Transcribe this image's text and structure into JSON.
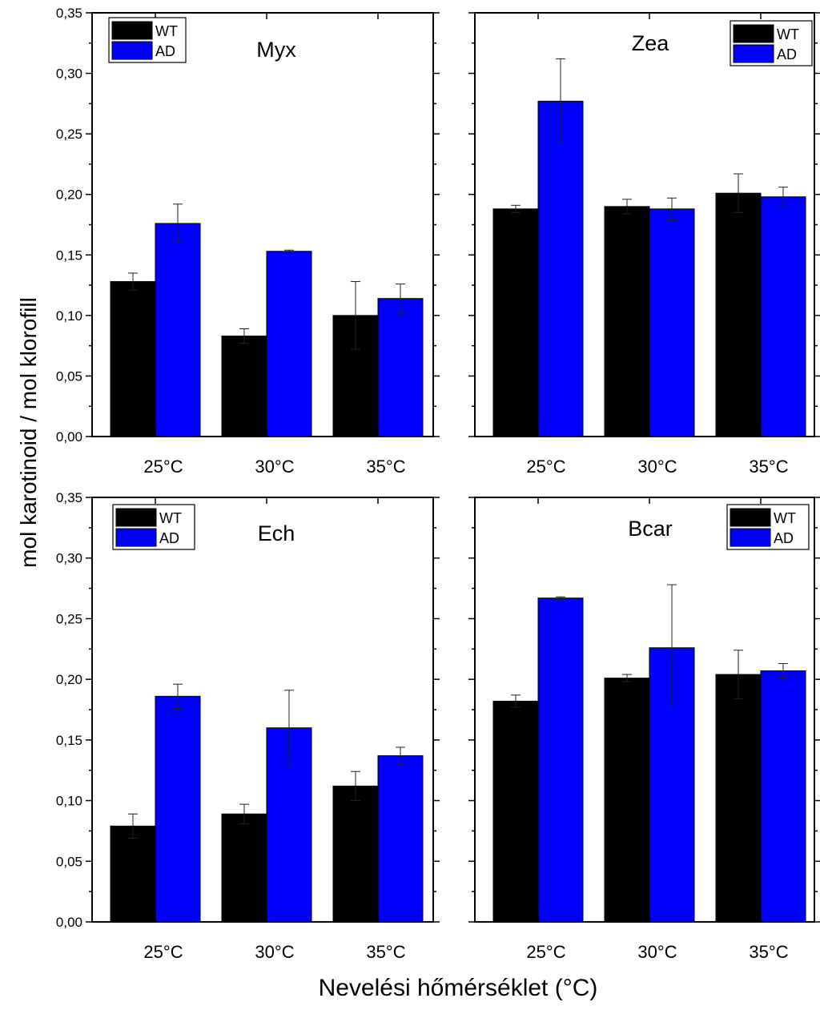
{
  "figure": {
    "ylabel": "mol karotinoid / mol klorofill",
    "xlabel": "Nevelési hőmérséklet (°C)"
  },
  "chart_data": [
    {
      "type": "bar",
      "title": "Myx",
      "categories": [
        "25°C",
        "30°C",
        "35°C"
      ],
      "series": [
        {
          "name": "WT",
          "color": "#000000",
          "values": [
            0.128,
            0.083,
            0.1
          ],
          "errors": [
            0.007,
            0.006,
            0.028
          ]
        },
        {
          "name": "AD",
          "color": "#0000ff",
          "values": [
            0.176,
            0.153,
            0.114
          ],
          "errors": [
            0.016,
            0.001,
            0.012
          ]
        }
      ],
      "ylim": [
        0,
        0.35
      ],
      "yticks": [
        "0,00",
        "0,05",
        "0,10",
        "0,15",
        "0,20",
        "0,25",
        "0,30",
        "0,35"
      ],
      "legend_position": "top-left",
      "grid": false
    },
    {
      "type": "bar",
      "title": "Zea",
      "categories": [
        "25°C",
        "30°C",
        "35°C"
      ],
      "series": [
        {
          "name": "WT",
          "color": "#000000",
          "values": [
            0.188,
            0.19,
            0.201
          ],
          "errors": [
            0.003,
            0.006,
            0.016
          ]
        },
        {
          "name": "AD",
          "color": "#0000ff",
          "values": [
            0.277,
            0.188,
            0.198
          ],
          "errors": [
            0.035,
            0.009,
            0.008
          ]
        }
      ],
      "ylim": [
        0,
        0.35
      ],
      "legend_position": "top-right",
      "grid": false
    },
    {
      "type": "bar",
      "title": "Ech",
      "categories": [
        "25°C",
        "30°C",
        "35°C"
      ],
      "series": [
        {
          "name": "WT",
          "color": "#000000",
          "values": [
            0.079,
            0.089,
            0.112
          ],
          "errors": [
            0.01,
            0.008,
            0.012
          ]
        },
        {
          "name": "AD",
          "color": "#0000ff",
          "values": [
            0.186,
            0.16,
            0.137
          ],
          "errors": [
            0.01,
            0.031,
            0.007
          ]
        }
      ],
      "ylim": [
        0,
        0.35
      ],
      "yticks": [
        "0,00",
        "0,05",
        "0,10",
        "0,15",
        "0,20",
        "0,25",
        "0,30",
        "0,35"
      ],
      "legend_position": "top-left",
      "grid": false
    },
    {
      "type": "bar",
      "title": "Bcar",
      "categories": [
        "25°C",
        "30°C",
        "35°C"
      ],
      "series": [
        {
          "name": "WT",
          "color": "#000000",
          "values": [
            0.182,
            0.201,
            0.204
          ],
          "errors": [
            0.005,
            0.003,
            0.02
          ]
        },
        {
          "name": "AD",
          "color": "#0000ff",
          "values": [
            0.267,
            0.226,
            0.207
          ],
          "errors": [
            0.001,
            0.052,
            0.006
          ]
        }
      ],
      "ylim": [
        0,
        0.35
      ],
      "legend_position": "top-right",
      "grid": false
    }
  ]
}
